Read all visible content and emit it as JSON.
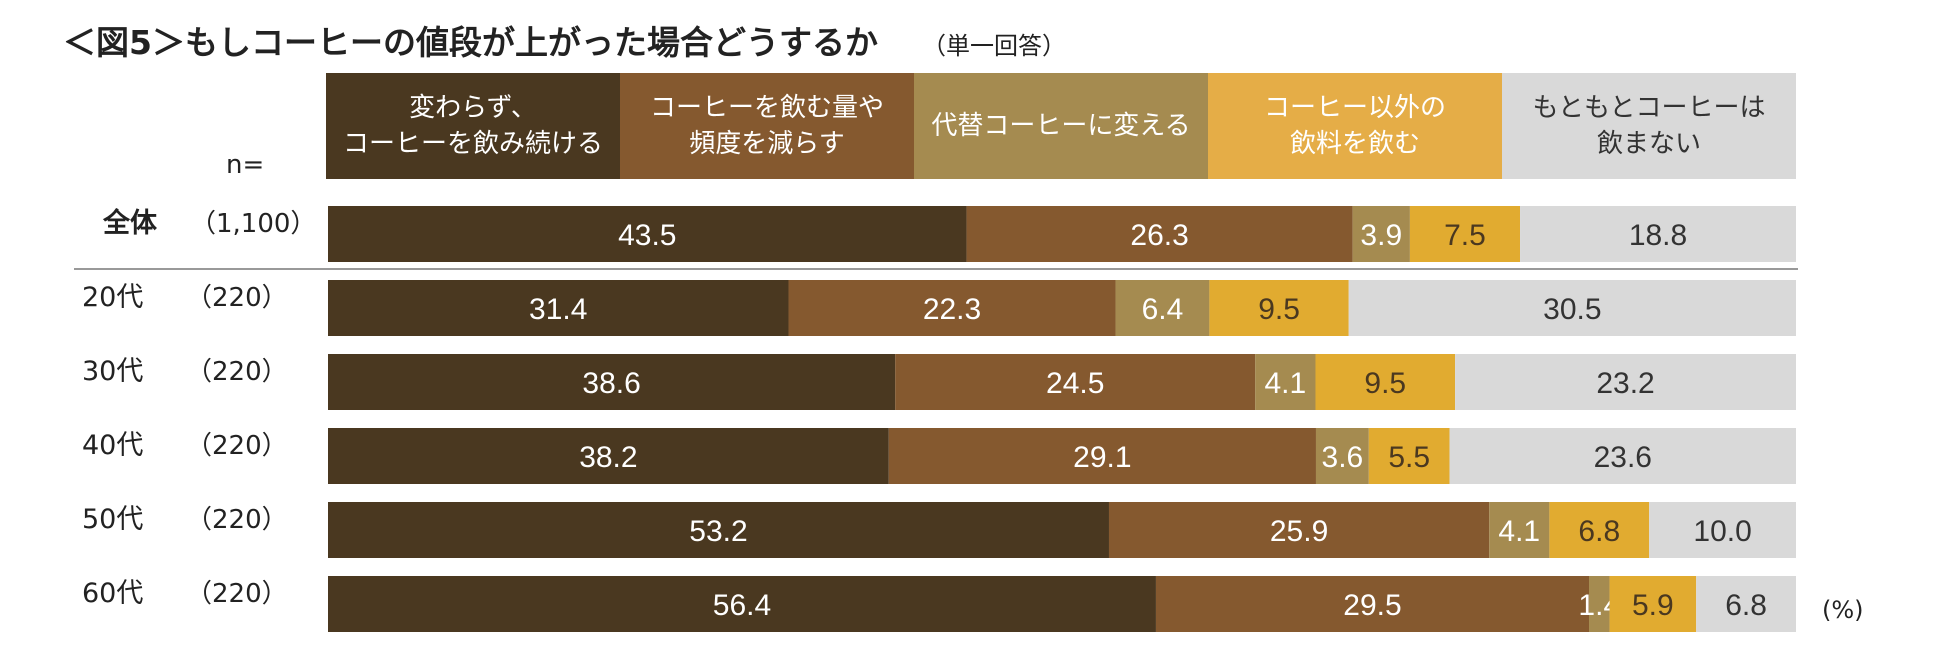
{
  "title": "＜図5＞もしコーヒーの値段が上がった場合どうするか",
  "subtitle": "（単一回答）",
  "n_label": "n=",
  "unit": "(%)",
  "colors": {
    "c1": "#4a3820",
    "c2": "#85592f",
    "c3": "#a58b50",
    "c4": "#e1ab30",
    "c4_legend": "#e5ad47",
    "c5": "#d9d9d9"
  },
  "chart_data": {
    "type": "bar",
    "orientation": "horizontal",
    "stacked": true,
    "percent": true,
    "categories": [
      "全体",
      "20代",
      "30代",
      "40代",
      "50代",
      "60代"
    ],
    "n": [
      "（1,100）",
      "（220）",
      "（220）",
      "（220）",
      "（220）",
      "（220）"
    ],
    "series": [
      {
        "name": "変わらず、\nコーヒーを飲み続ける",
        "values": [
          43.5,
          31.4,
          38.6,
          38.2,
          53.2,
          56.4
        ]
      },
      {
        "name": "コーヒーを飲む量や\n頻度を減らす",
        "values": [
          26.3,
          22.3,
          24.5,
          29.1,
          25.9,
          29.5
        ]
      },
      {
        "name": "代替コーヒーに変える",
        "values": [
          3.9,
          6.4,
          4.1,
          3.6,
          4.1,
          1.4
        ]
      },
      {
        "name": "コーヒー以外の\n飲料を飲む",
        "values": [
          7.5,
          9.5,
          9.5,
          5.5,
          6.8,
          5.9
        ]
      },
      {
        "name": "もともとコーヒーは\n飲まない",
        "values": [
          18.8,
          30.5,
          23.2,
          23.6,
          10.0,
          6.8
        ]
      }
    ],
    "xlim": [
      0,
      100
    ]
  }
}
